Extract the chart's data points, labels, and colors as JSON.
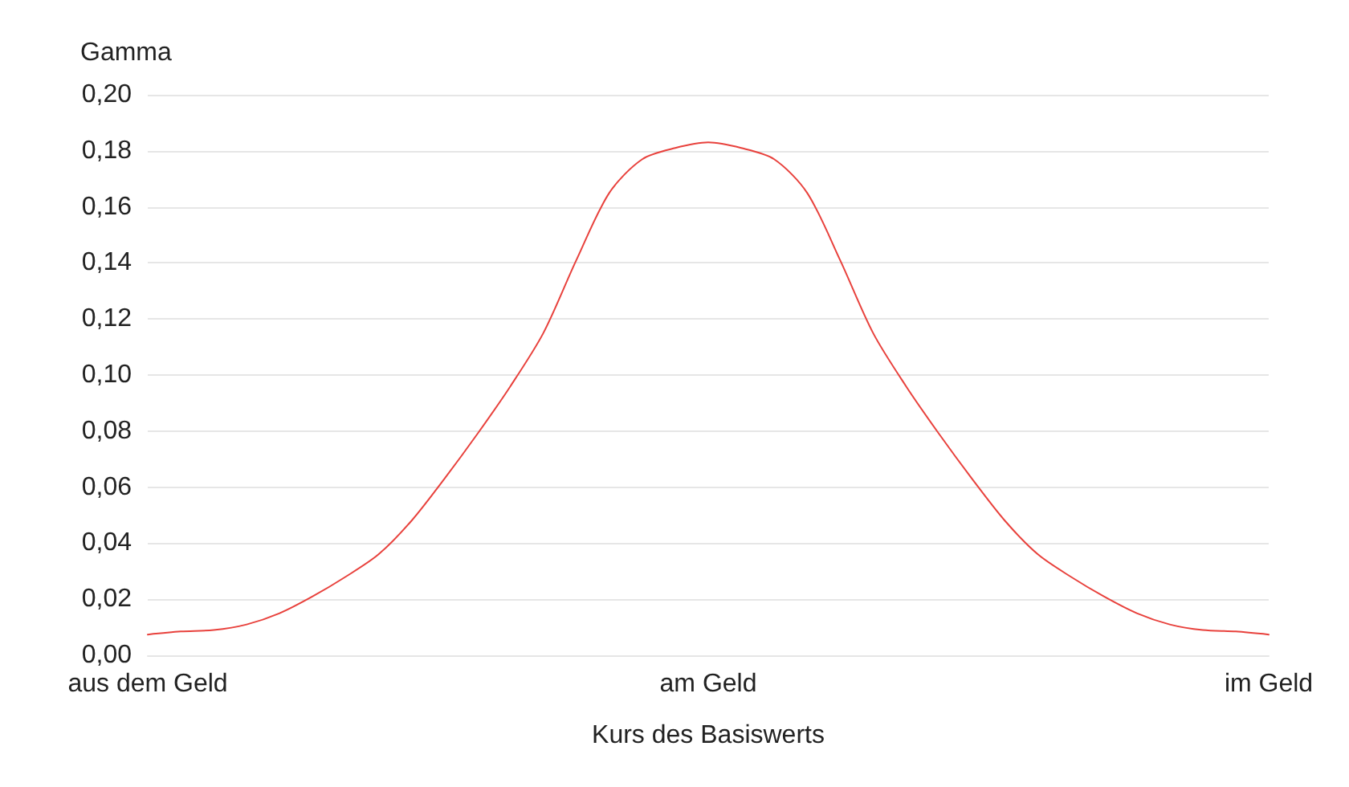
{
  "chart_data": {
    "type": "line",
    "xlabel": "Kurs des Basiswerts",
    "ylabel": "Gamma",
    "categories": [
      "aus dem Geld",
      null,
      null,
      null,
      null,
      null,
      null,
      null,
      null,
      null,
      null,
      null,
      null,
      null,
      null,
      null,
      null,
      "am Geld",
      null,
      null,
      null,
      null,
      null,
      null,
      null,
      null,
      null,
      null,
      null,
      null,
      null,
      null,
      null,
      null,
      "im Geld"
    ],
    "series": [
      {
        "color": "#e8413c",
        "values": [
          0.0074,
          0.0085,
          0.009,
          0.011,
          0.015,
          0.021,
          0.028,
          0.036,
          0.048,
          0.063,
          0.079,
          0.096,
          0.115,
          0.141,
          0.165,
          0.177,
          0.181,
          0.183,
          0.181,
          0.177,
          0.165,
          0.141,
          0.115,
          0.096,
          0.079,
          0.063,
          0.048,
          0.036,
          0.028,
          0.021,
          0.015,
          0.011,
          0.009,
          0.0085,
          0.0074
        ]
      }
    ],
    "ylim": [
      0,
      0.2
    ],
    "yticks": [
      {
        "value": 0,
        "label": "0,00"
      },
      {
        "value": 0.02,
        "label": "0,02"
      },
      {
        "value": 0.04,
        "label": "0,04"
      },
      {
        "value": 0.06,
        "label": "0,06"
      },
      {
        "value": 0.08,
        "label": "0,08"
      },
      {
        "value": 0.1,
        "label": "0,10"
      },
      {
        "value": 0.12,
        "label": "0,12"
      },
      {
        "value": 0.14,
        "label": "0,14"
      },
      {
        "value": 0.16,
        "label": "0,16"
      },
      {
        "value": 0.18,
        "label": "0,18"
      },
      {
        "value": 0.2,
        "label": "0,20"
      }
    ],
    "grid": "y",
    "marker": "none",
    "line_style": "solid"
  }
}
